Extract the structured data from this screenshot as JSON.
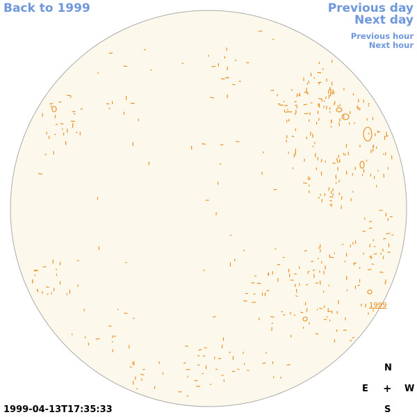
{
  "nav": {
    "back": "Back to 1999",
    "previous_day": "Previous day",
    "next_day": "Next day",
    "previous_hour": "Previous hour",
    "next_hour": "Next hour"
  },
  "map": {
    "disk_fill": "#fdf8ec",
    "disk_stroke": "#aaaaaa",
    "contour_color": "#e8870f",
    "region_label": "1999"
  },
  "compass": {
    "north": "N",
    "east": "E",
    "center": "+",
    "west": "W",
    "south": "S"
  },
  "timestamp": "1999-04-13T17:35:33"
}
